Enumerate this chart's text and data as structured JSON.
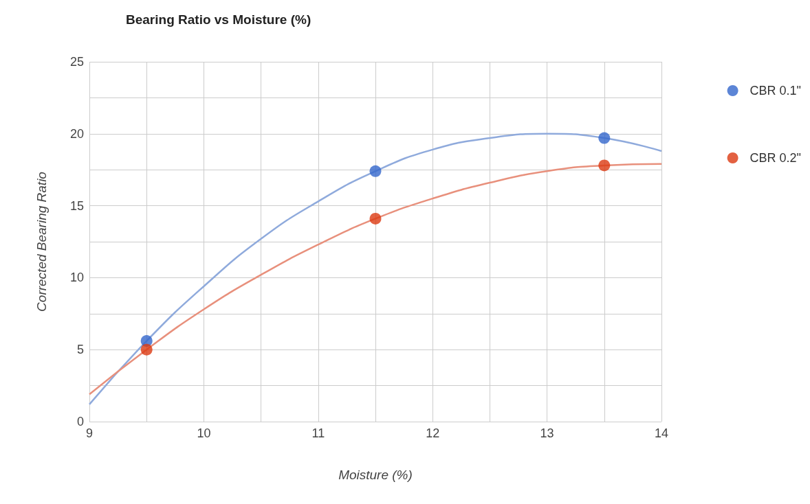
{
  "chart_data": {
    "type": "scatter",
    "title": "Bearing Ratio vs Moisture (%)",
    "xlabel": "Moisture (%)",
    "ylabel": "Corrected Bearing Ratio",
    "xlim": [
      9,
      14
    ],
    "ylim": [
      0,
      25
    ],
    "xticks": [
      9,
      {
        "value": 9.5,
        "label": null
      },
      10,
      {
        "value": 10.5,
        "label": null
      },
      11,
      {
        "value": 11.5,
        "label": null
      },
      12,
      {
        "value": 12.5,
        "label": null
      },
      13,
      {
        "value": 13.5,
        "label": null
      },
      14
    ],
    "yticks": [
      0,
      {
        "value": 2.5,
        "label": null
      },
      5,
      {
        "value": 7.5,
        "label": null
      },
      10,
      {
        "value": 12.5,
        "label": null
      },
      15,
      {
        "value": 17.5,
        "label": null
      },
      20,
      {
        "value": 22.5,
        "label": null
      },
      25
    ],
    "grid": true,
    "legend": "top right",
    "marker": "circle",
    "series": [
      {
        "type": "line",
        "color": "#8faadc",
        "x": [
          9,
          9.5,
          10,
          10.5,
          11,
          11.5,
          12,
          12.5,
          13,
          13.5,
          14
        ],
        "values": [
          1.2,
          5.6,
          9.4,
          12.7,
          15.3,
          17.4,
          18.9,
          19.7,
          20.0,
          19.7,
          18.8
        ],
        "line_style": "solid",
        "marker": "none"
      },
      {
        "type": "line",
        "color": "#e8907c",
        "x": [
          9,
          9.5,
          10,
          10.5,
          11,
          11.5,
          12,
          12.5,
          13,
          13.5,
          14
        ],
        "values": [
          1.9,
          5.0,
          7.8,
          10.2,
          12.3,
          14.1,
          15.5,
          16.6,
          17.4,
          17.8,
          17.9
        ],
        "line_style": "solid",
        "marker": "none"
      },
      {
        "name": "CBR 0.1\"",
        "color": "#3366cc",
        "x": [
          9.5,
          11.5,
          13.5
        ],
        "values": [
          5.6,
          17.4,
          19.7
        ]
      },
      {
        "name": "CBR 0.2\"",
        "color": "#dc3912",
        "x": [
          9.5,
          11.5,
          13.5
        ],
        "values": [
          5.0,
          14.1,
          17.8
        ]
      }
    ]
  }
}
